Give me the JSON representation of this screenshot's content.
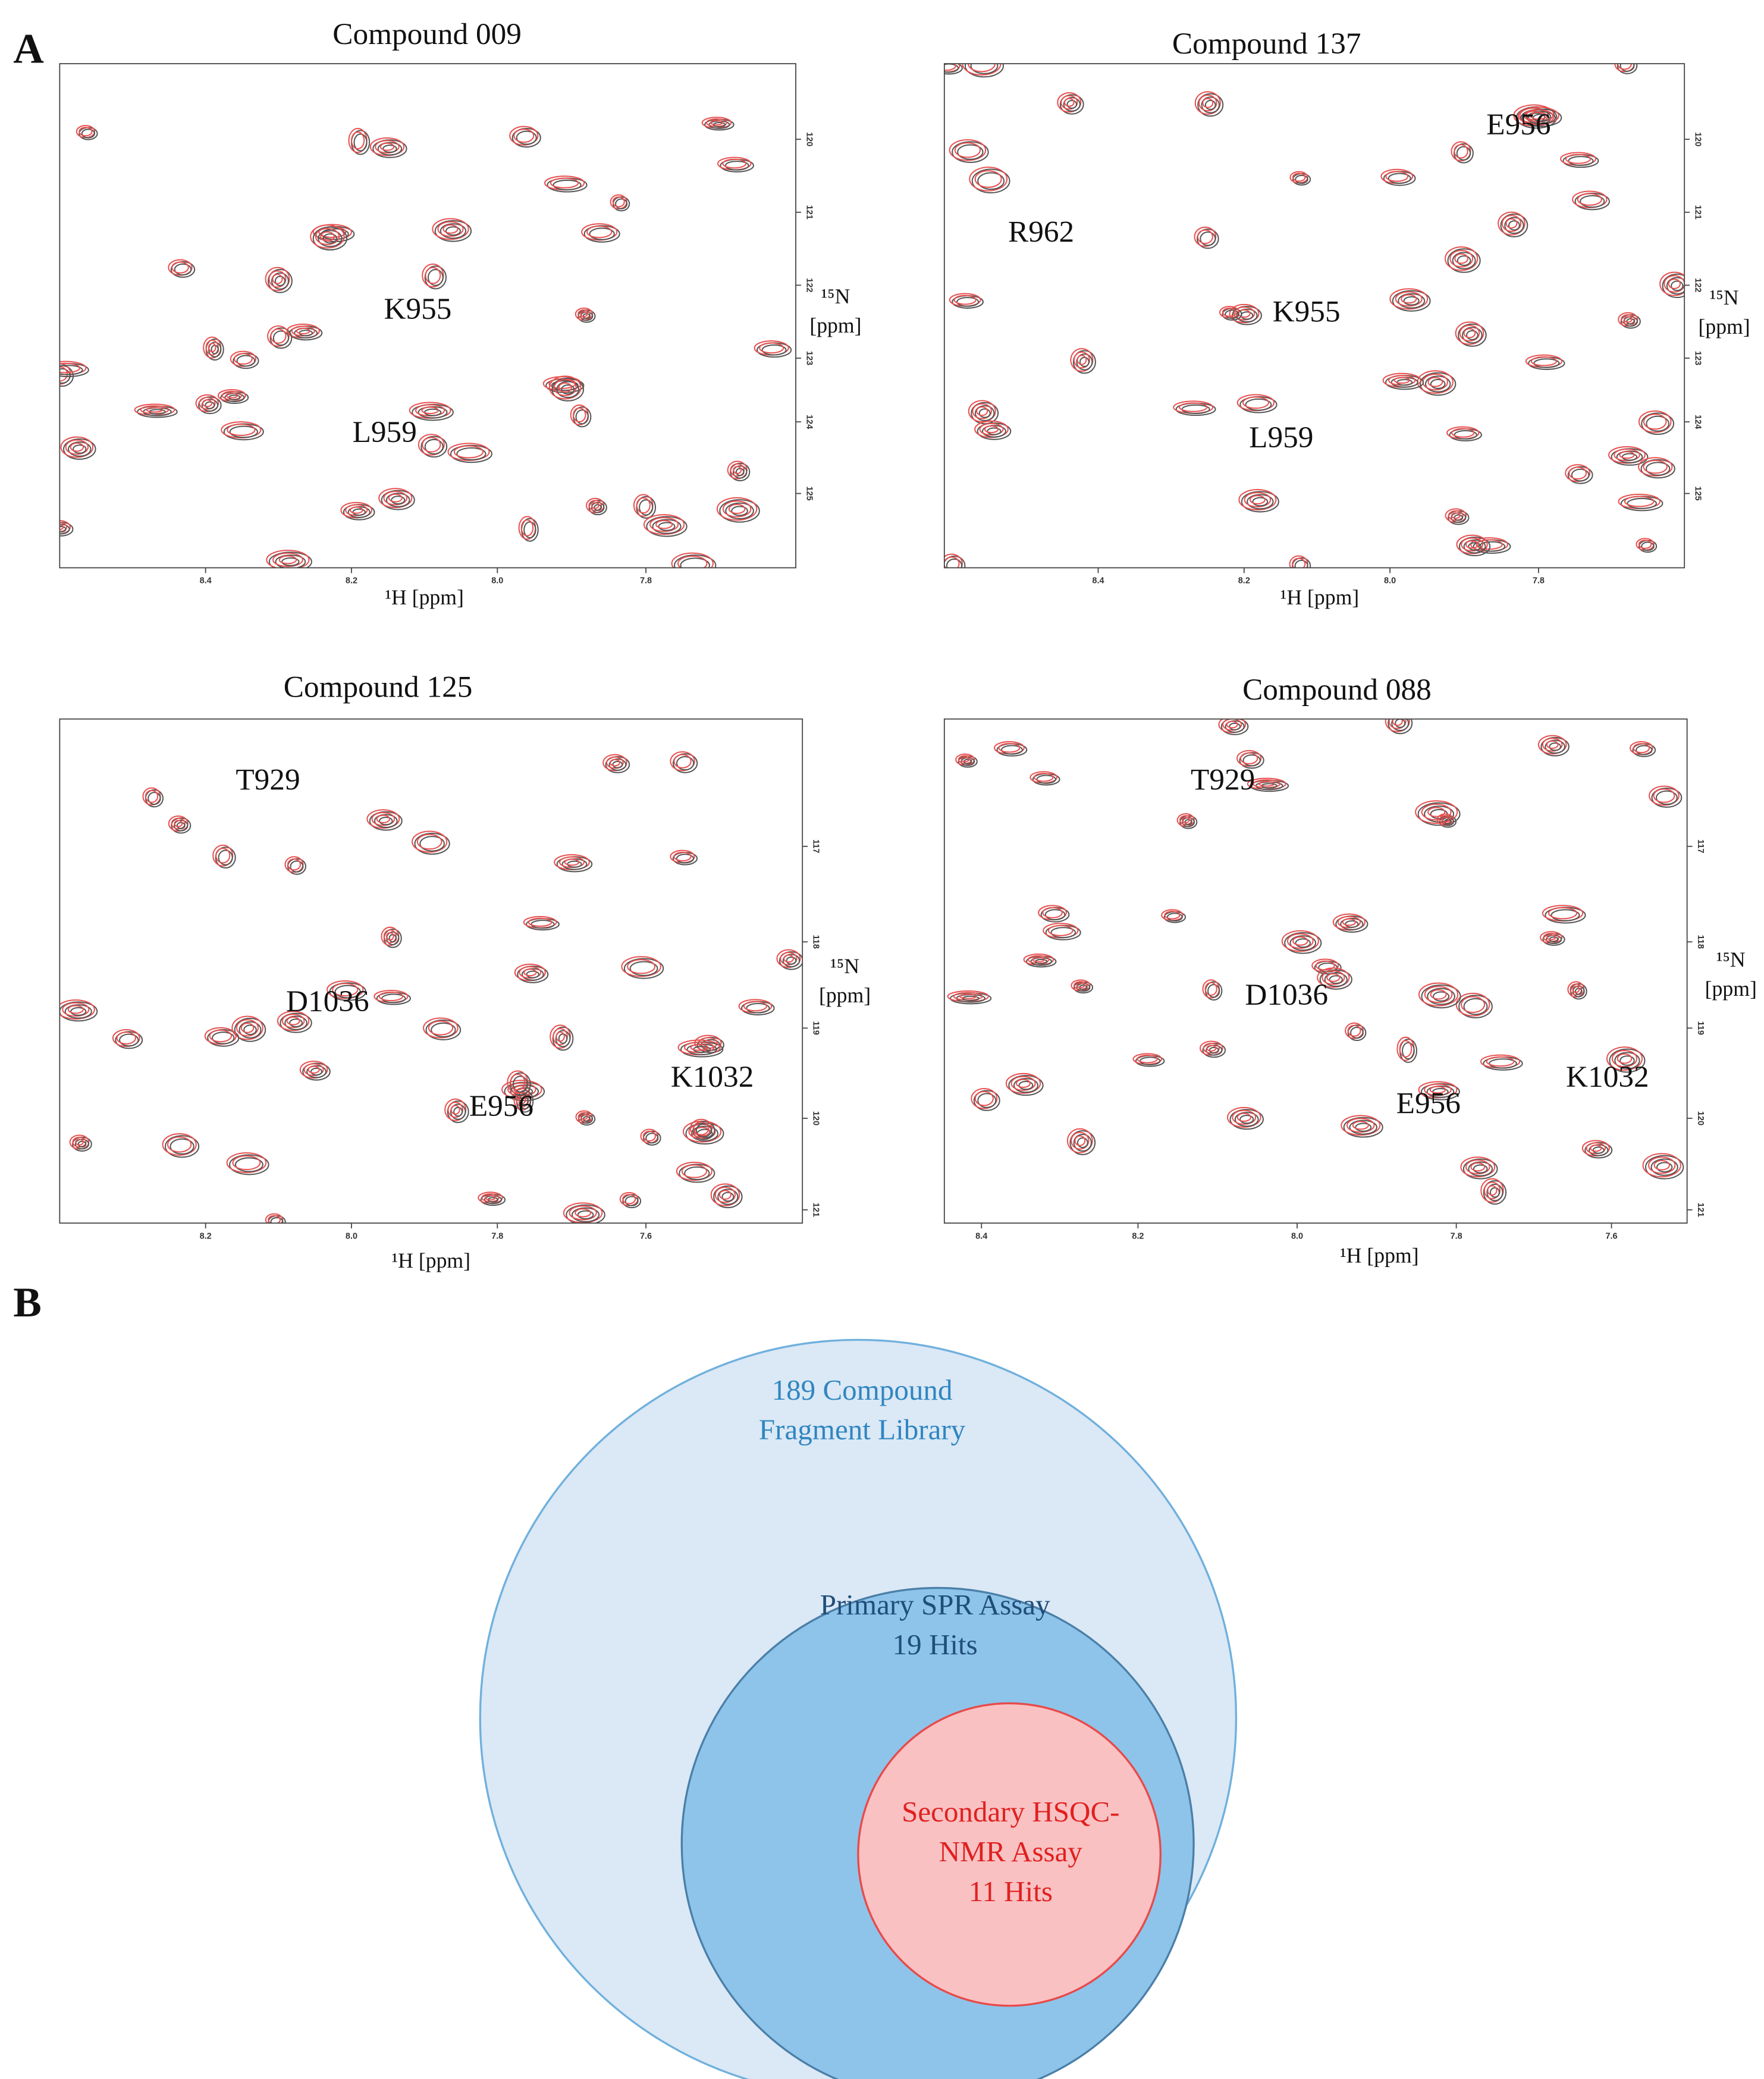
{
  "panel_a": {
    "label": "A",
    "spectra": [
      {
        "title": "Compound 009",
        "x_label": "¹H [ppm]",
        "y_label": [
          "¹⁵N",
          "[ppm]"
        ],
        "xticks": [
          "8.4",
          "8.2",
          "8.0",
          "7.8"
        ],
        "yticks": [
          "120",
          "121",
          "122",
          "123",
          "124",
          "125"
        ],
        "annotations": [
          "K955",
          "L959"
        ]
      },
      {
        "title": "Compound 137",
        "x_label": "¹H [ppm]",
        "y_label": [
          "¹⁵N",
          "[ppm]"
        ],
        "xticks": [
          "8.4",
          "8.2",
          "8.0",
          "7.8"
        ],
        "yticks": [
          "120",
          "121",
          "122",
          "123",
          "124",
          "125"
        ],
        "annotations": [
          "E956",
          "R962",
          "K955",
          "L959"
        ]
      },
      {
        "title": "Compound 125",
        "x_label": "¹H [ppm]",
        "y_label": [
          "¹⁵N",
          "[ppm]"
        ],
        "xticks": [
          "8.2",
          "8.0",
          "7.8",
          "7.6"
        ],
        "yticks": [
          "117",
          "118",
          "119",
          "120",
          "121"
        ],
        "annotations": [
          "T929",
          "D1036",
          "E956",
          "K1032"
        ]
      },
      {
        "title": "Compound 088",
        "x_label": "¹H [ppm]",
        "y_label": [
          "¹⁵N",
          "[ppm]"
        ],
        "xticks": [
          "8.4",
          "8.2",
          "8.0",
          "7.8",
          "7.6"
        ],
        "yticks": [
          "117",
          "118",
          "119",
          "120",
          "121"
        ],
        "annotations": [
          "T929",
          "D1036",
          "E956",
          "K1032"
        ]
      }
    ]
  },
  "panel_b": {
    "label": "B",
    "circles": [
      {
        "lines": [
          "189 Compound",
          "Fragment Library"
        ]
      },
      {
        "lines": [
          "Primary SPR Assay",
          "19 Hits"
        ]
      },
      {
        "lines": [
          "Secondary HSQC-",
          "NMR Assay",
          "11 Hits"
        ]
      }
    ]
  }
}
